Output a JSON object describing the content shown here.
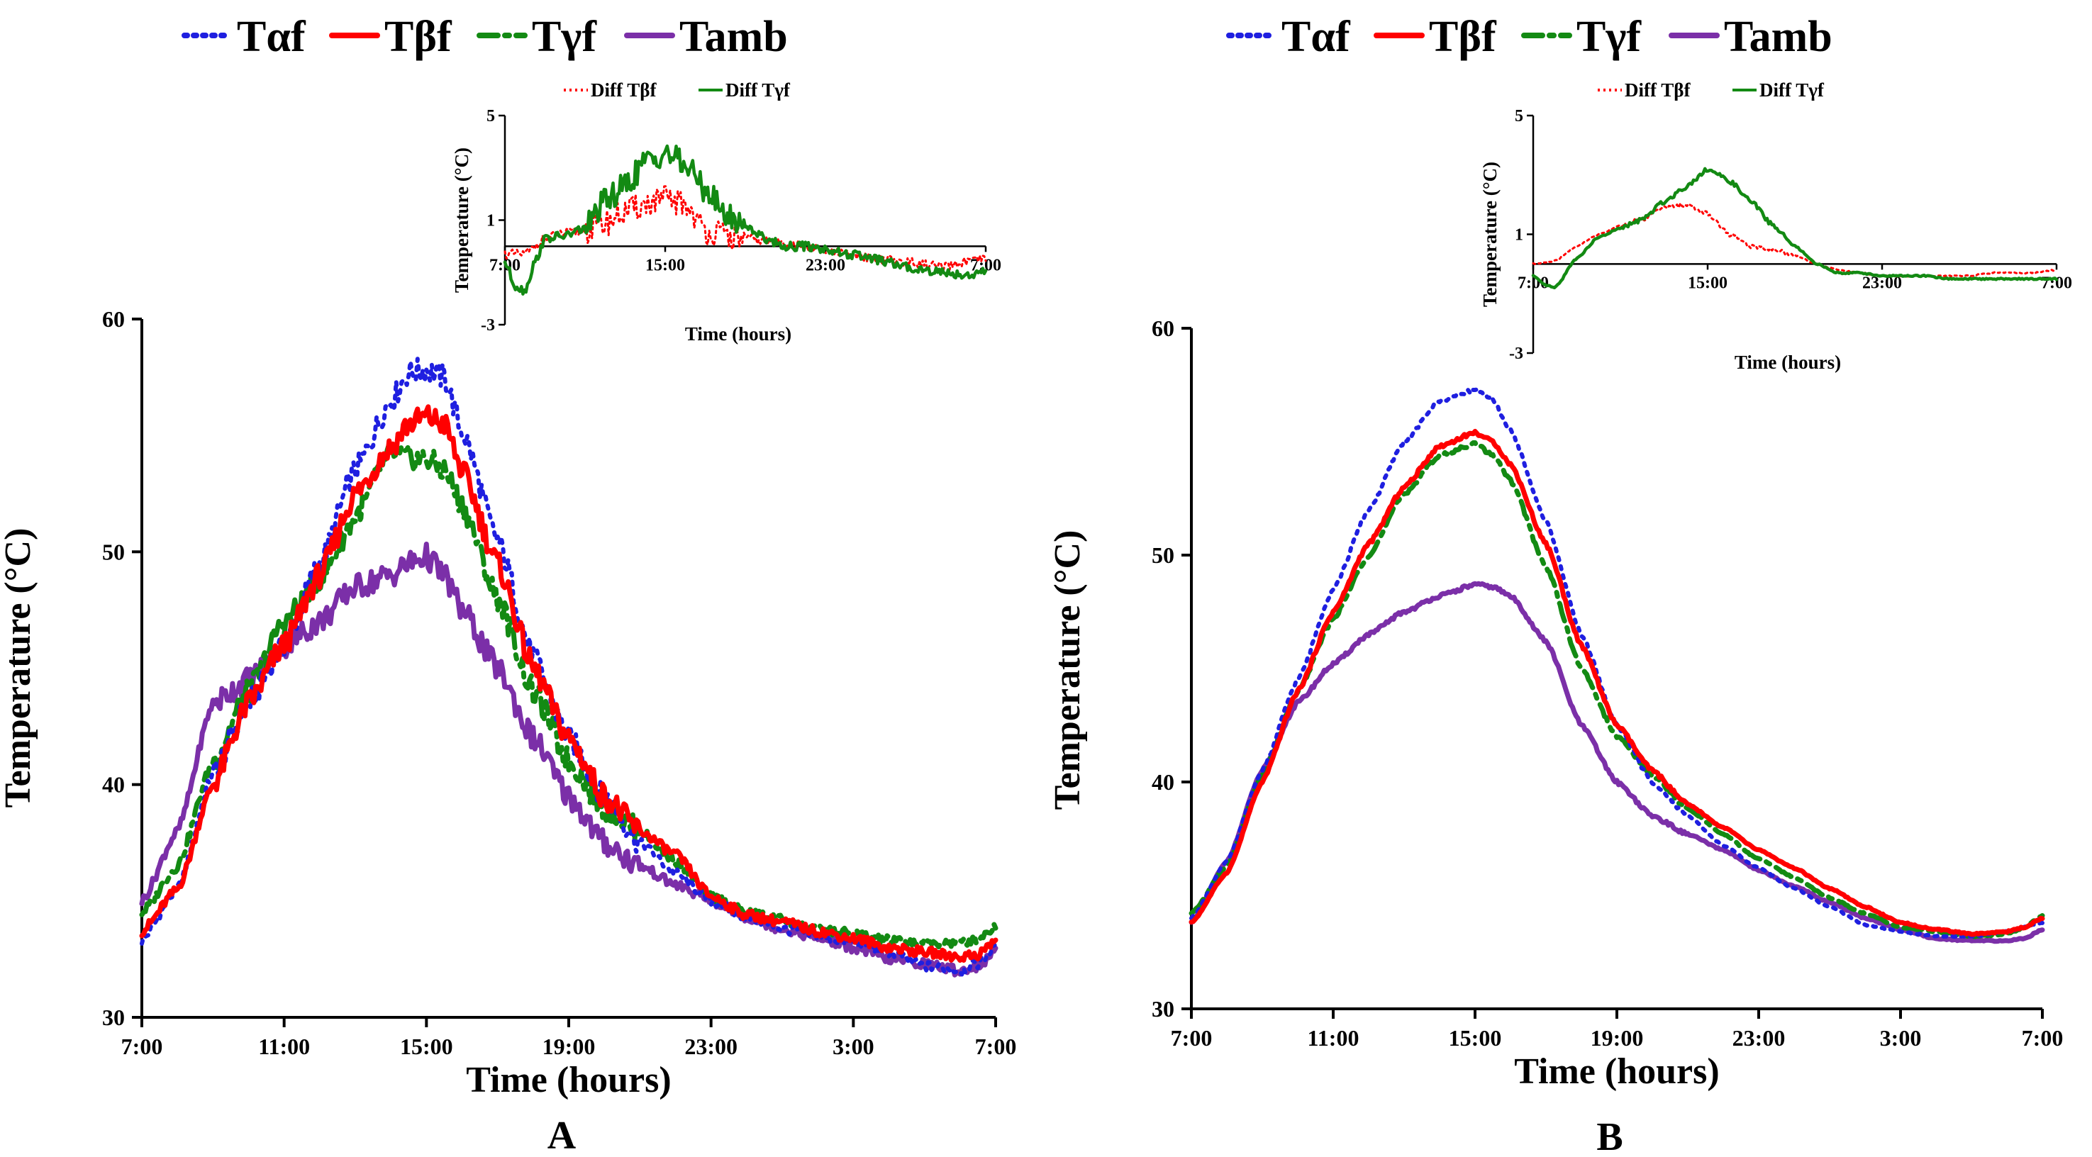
{
  "chart_data": [
    {
      "panel": "A",
      "type": "line",
      "title": "",
      "xlabel": "Time (hours)",
      "ylabel": "Temperature (°C)",
      "x_ticks": [
        "7:00",
        "11:00",
        "15:00",
        "19:00",
        "23:00",
        "3:00",
        "7:00"
      ],
      "ylim": [
        30,
        60
      ],
      "y_ticks": [
        30,
        40,
        50,
        60
      ],
      "xlim_hours": [
        0,
        24
      ],
      "noise": 0.35,
      "series": [
        {
          "name": "Tαf",
          "color": "#1f1fe0",
          "style": "dotted",
          "x": [
            0,
            1,
            2,
            3,
            4,
            5,
            6,
            7,
            7.5,
            8,
            8.5,
            9,
            10,
            11,
            12,
            13,
            14,
            15,
            16,
            17,
            18,
            19,
            20,
            21,
            22,
            23,
            23.5,
            24
          ],
          "y": [
            33.3,
            35.5,
            40.5,
            43.5,
            46.0,
            49.5,
            53.5,
            56.5,
            57.7,
            57.8,
            57.5,
            55.2,
            50.5,
            45.5,
            42.0,
            39.5,
            37.5,
            36.2,
            35.0,
            34.3,
            33.8,
            33.5,
            33.2,
            32.8,
            32.2,
            32.0,
            32.3,
            33.0
          ]
        },
        {
          "name": "Tβf",
          "color": "#ff0000",
          "style": "solid",
          "x": [
            0,
            1,
            2,
            3,
            4,
            5,
            6,
            7,
            7.5,
            8,
            8.5,
            9,
            10,
            11,
            12,
            13,
            14,
            15,
            16,
            17,
            18,
            19,
            20,
            21,
            22,
            23,
            23.5,
            24
          ],
          "y": [
            33.7,
            35.5,
            40.0,
            43.5,
            46.0,
            49.0,
            52.5,
            54.5,
            55.5,
            55.8,
            55.5,
            53.5,
            49.5,
            45.0,
            42.0,
            39.5,
            38.0,
            37.0,
            35.2,
            34.4,
            34.1,
            33.7,
            33.4,
            33.0,
            32.8,
            32.6,
            32.7,
            33.3
          ]
        },
        {
          "name": "Tγf",
          "color": "#138a13",
          "style": "dashdot",
          "x": [
            0,
            1,
            2,
            3,
            4,
            5,
            6,
            7,
            7.5,
            8,
            8.5,
            9,
            10,
            11,
            12,
            13,
            14,
            15,
            16,
            17,
            18,
            19,
            20,
            21,
            22,
            23,
            23.5,
            24
          ],
          "y": [
            34.5,
            36.5,
            41.0,
            44.0,
            47.0,
            48.8,
            51.5,
            54.2,
            54.0,
            54.0,
            53.5,
            52.0,
            48.0,
            44.0,
            41.0,
            39.0,
            38.0,
            36.7,
            35.2,
            34.5,
            34.2,
            33.8,
            33.6,
            33.3,
            33.2,
            33.2,
            33.4,
            33.9
          ]
        },
        {
          "name": "Tamb",
          "color": "#7b2fa8",
          "style": "solid",
          "x": [
            0,
            1,
            2,
            3,
            4,
            5,
            6,
            7,
            7.5,
            8,
            8.5,
            9,
            10,
            11,
            12,
            13,
            14,
            15,
            16,
            17,
            18,
            19,
            20,
            21,
            22,
            23,
            23.5,
            24
          ],
          "y": [
            35.0,
            38.0,
            43.5,
            44.5,
            46.0,
            47.0,
            48.5,
            49.0,
            49.5,
            49.8,
            49.0,
            47.5,
            45.0,
            42.0,
            39.5,
            37.5,
            36.5,
            35.7,
            35.0,
            34.3,
            33.8,
            33.4,
            33.0,
            32.5,
            32.3,
            32.0,
            32.2,
            32.8
          ]
        }
      ],
      "inset": {
        "type": "line",
        "xlabel": "Time (hours)",
        "ylabel": "Temperature (°C)",
        "x_ticks": [
          "7:00",
          "15:00",
          "23:00",
          "7:00"
        ],
        "y_ticks": [
          5,
          1,
          -3
        ],
        "ylim": [
          -3,
          5
        ],
        "series": [
          {
            "name": "Diff Tβf",
            "color": "#ff0000",
            "style": "dotted",
            "x": [
              0,
              1,
              2,
              3,
              4,
              5,
              6,
              7,
              8,
              9,
              10,
              11,
              12,
              13,
              14,
              15,
              16,
              17,
              18,
              19,
              20,
              21,
              22,
              23,
              24
            ],
            "y": [
              -0.3,
              -0.3,
              0.3,
              0.5,
              0.6,
              0.9,
              1.3,
              1.6,
              1.8,
              1.6,
              0.6,
              0.4,
              0.3,
              0.2,
              0.1,
              0.0,
              -0.2,
              -0.3,
              -0.4,
              -0.5,
              -0.6,
              -0.7,
              -0.8,
              -0.6,
              -0.5
            ]
          },
          {
            "name": "Diff Tγf",
            "color": "#138a13",
            "style": "solid",
            "x": [
              0,
              0.5,
              1,
              1.5,
              2,
              3,
              4,
              5,
              6,
              7,
              8,
              9,
              10,
              11,
              12,
              13,
              14,
              15,
              16,
              17,
              18,
              19,
              20,
              21,
              22,
              23,
              24
            ],
            "y": [
              -0.6,
              -1.5,
              -1.7,
              -0.6,
              0.3,
              0.4,
              0.7,
              1.7,
              2.3,
              3.2,
              3.6,
              3.1,
              2.2,
              1.2,
              0.8,
              0.3,
              0.0,
              0.0,
              -0.1,
              -0.3,
              -0.4,
              -0.6,
              -0.8,
              -0.9,
              -1.0,
              -1.1,
              -1.0
            ]
          }
        ]
      }
    },
    {
      "panel": "B",
      "type": "line",
      "title": "",
      "xlabel": "Time (hours)",
      "ylabel": "Temperature (°C)",
      "x_ticks": [
        "7:00",
        "11:00",
        "15:00",
        "19:00",
        "23:00",
        "3:00",
        "7:00"
      ],
      "ylim": [
        30,
        60
      ],
      "y_ticks": [
        30,
        40,
        50,
        60
      ],
      "xlim_hours": [
        0,
        24
      ],
      "noise": 0.05,
      "series": [
        {
          "name": "Tαf",
          "color": "#1f1fe0",
          "style": "dotted",
          "x": [
            0,
            1,
            2,
            3,
            4,
            5,
            6,
            7,
            8,
            8.5,
            9,
            10,
            11,
            12,
            13,
            14,
            15,
            16,
            17,
            18,
            19,
            20,
            21,
            22,
            23,
            23.5,
            24
          ],
          "y": [
            34.0,
            36.5,
            40.5,
            44.5,
            48.5,
            52.0,
            55.0,
            56.8,
            57.3,
            56.8,
            55.5,
            51.5,
            46.5,
            42.5,
            40.0,
            38.5,
            37.2,
            36.2,
            35.3,
            34.5,
            33.7,
            33.4,
            33.2,
            33.2,
            33.4,
            33.6,
            33.8
          ]
        },
        {
          "name": "Tβf",
          "color": "#ff0000",
          "style": "solid",
          "x": [
            0,
            1,
            2,
            3,
            4,
            5,
            6,
            7,
            8,
            8.5,
            9,
            10,
            11,
            12,
            13,
            14,
            15,
            16,
            17,
            18,
            19,
            20,
            21,
            22,
            23,
            23.5,
            24
          ],
          "y": [
            33.8,
            36.0,
            40.0,
            44.0,
            47.5,
            50.5,
            53.0,
            54.8,
            55.4,
            55.0,
            54.0,
            50.5,
            46.0,
            42.5,
            40.5,
            39.0,
            38.0,
            37.0,
            36.2,
            35.3,
            34.5,
            33.8,
            33.5,
            33.3,
            33.4,
            33.6,
            34.0
          ]
        },
        {
          "name": "Tγf",
          "color": "#138a13",
          "style": "dashdot",
          "x": [
            0,
            1,
            2,
            3,
            4,
            5,
            6,
            7,
            8,
            8.5,
            9,
            10,
            11,
            12,
            13,
            14,
            15,
            16,
            17,
            18,
            19,
            20,
            21,
            22,
            23,
            23.5,
            24
          ],
          "y": [
            34.2,
            36.3,
            40.3,
            44.0,
            47.2,
            50.0,
            52.7,
            54.4,
            54.9,
            54.4,
            53.3,
            49.5,
            45.0,
            42.0,
            40.3,
            38.8,
            37.7,
            36.6,
            35.8,
            34.9,
            34.2,
            33.6,
            33.4,
            33.2,
            33.3,
            33.6,
            34.1
          ]
        },
        {
          "name": "Tamb",
          "color": "#7b2fa8",
          "style": "solid",
          "x": [
            0,
            1,
            2,
            3,
            4,
            5,
            6,
            7,
            8,
            8.5,
            9,
            10,
            11,
            12,
            13,
            14,
            15,
            16,
            17,
            18,
            19,
            20,
            21,
            22,
            23,
            23.5,
            24
          ],
          "y": [
            33.8,
            36.5,
            40.5,
            43.5,
            45.2,
            46.5,
            47.5,
            48.2,
            48.7,
            48.6,
            48.2,
            46.2,
            42.5,
            40.0,
            38.5,
            37.7,
            37.0,
            36.1,
            35.4,
            34.7,
            34.0,
            33.5,
            33.1,
            33.0,
            33.0,
            33.1,
            33.5
          ]
        }
      ],
      "inset": {
        "type": "line",
        "xlabel": "Time (hours)",
        "ylabel": "Temperature (°C)",
        "x_ticks": [
          "7:00",
          "15:00",
          "23:00",
          "7:00"
        ],
        "y_ticks": [
          5,
          1,
          -3
        ],
        "ylim": [
          -3,
          5
        ],
        "series": [
          {
            "name": "Diff Tβf",
            "color": "#ff0000",
            "style": "dotted",
            "x": [
              0,
              1,
              2,
              3,
              4,
              5,
              6,
              7,
              8,
              9,
              10,
              11,
              12,
              13,
              14,
              15,
              16,
              17,
              18,
              19,
              20,
              21,
              22,
              23,
              24
            ],
            "y": [
              0.0,
              0.1,
              0.6,
              1.0,
              1.3,
              1.5,
              1.9,
              2.0,
              1.7,
              1.0,
              0.6,
              0.5,
              0.3,
              0.0,
              -0.2,
              -0.3,
              -0.4,
              -0.4,
              -0.4,
              -0.4,
              -0.4,
              -0.3,
              -0.3,
              -0.3,
              -0.2
            ]
          },
          {
            "name": "Diff Tγf",
            "color": "#138a13",
            "style": "solid",
            "x": [
              0,
              0.5,
              1,
              2,
              3,
              4,
              5,
              6,
              7,
              8,
              9,
              10,
              11,
              12,
              13,
              14,
              15,
              16,
              17,
              18,
              19,
              20,
              21,
              22,
              23,
              24
            ],
            "y": [
              -0.4,
              -0.7,
              -0.8,
              0.2,
              0.9,
              1.2,
              1.5,
              2.1,
              2.6,
              3.2,
              2.8,
              2.1,
              1.3,
              0.6,
              0.0,
              -0.3,
              -0.3,
              -0.4,
              -0.4,
              -0.4,
              -0.5,
              -0.5,
              -0.5,
              -0.5,
              -0.5,
              -0.5
            ]
          }
        ]
      }
    }
  ]
}
